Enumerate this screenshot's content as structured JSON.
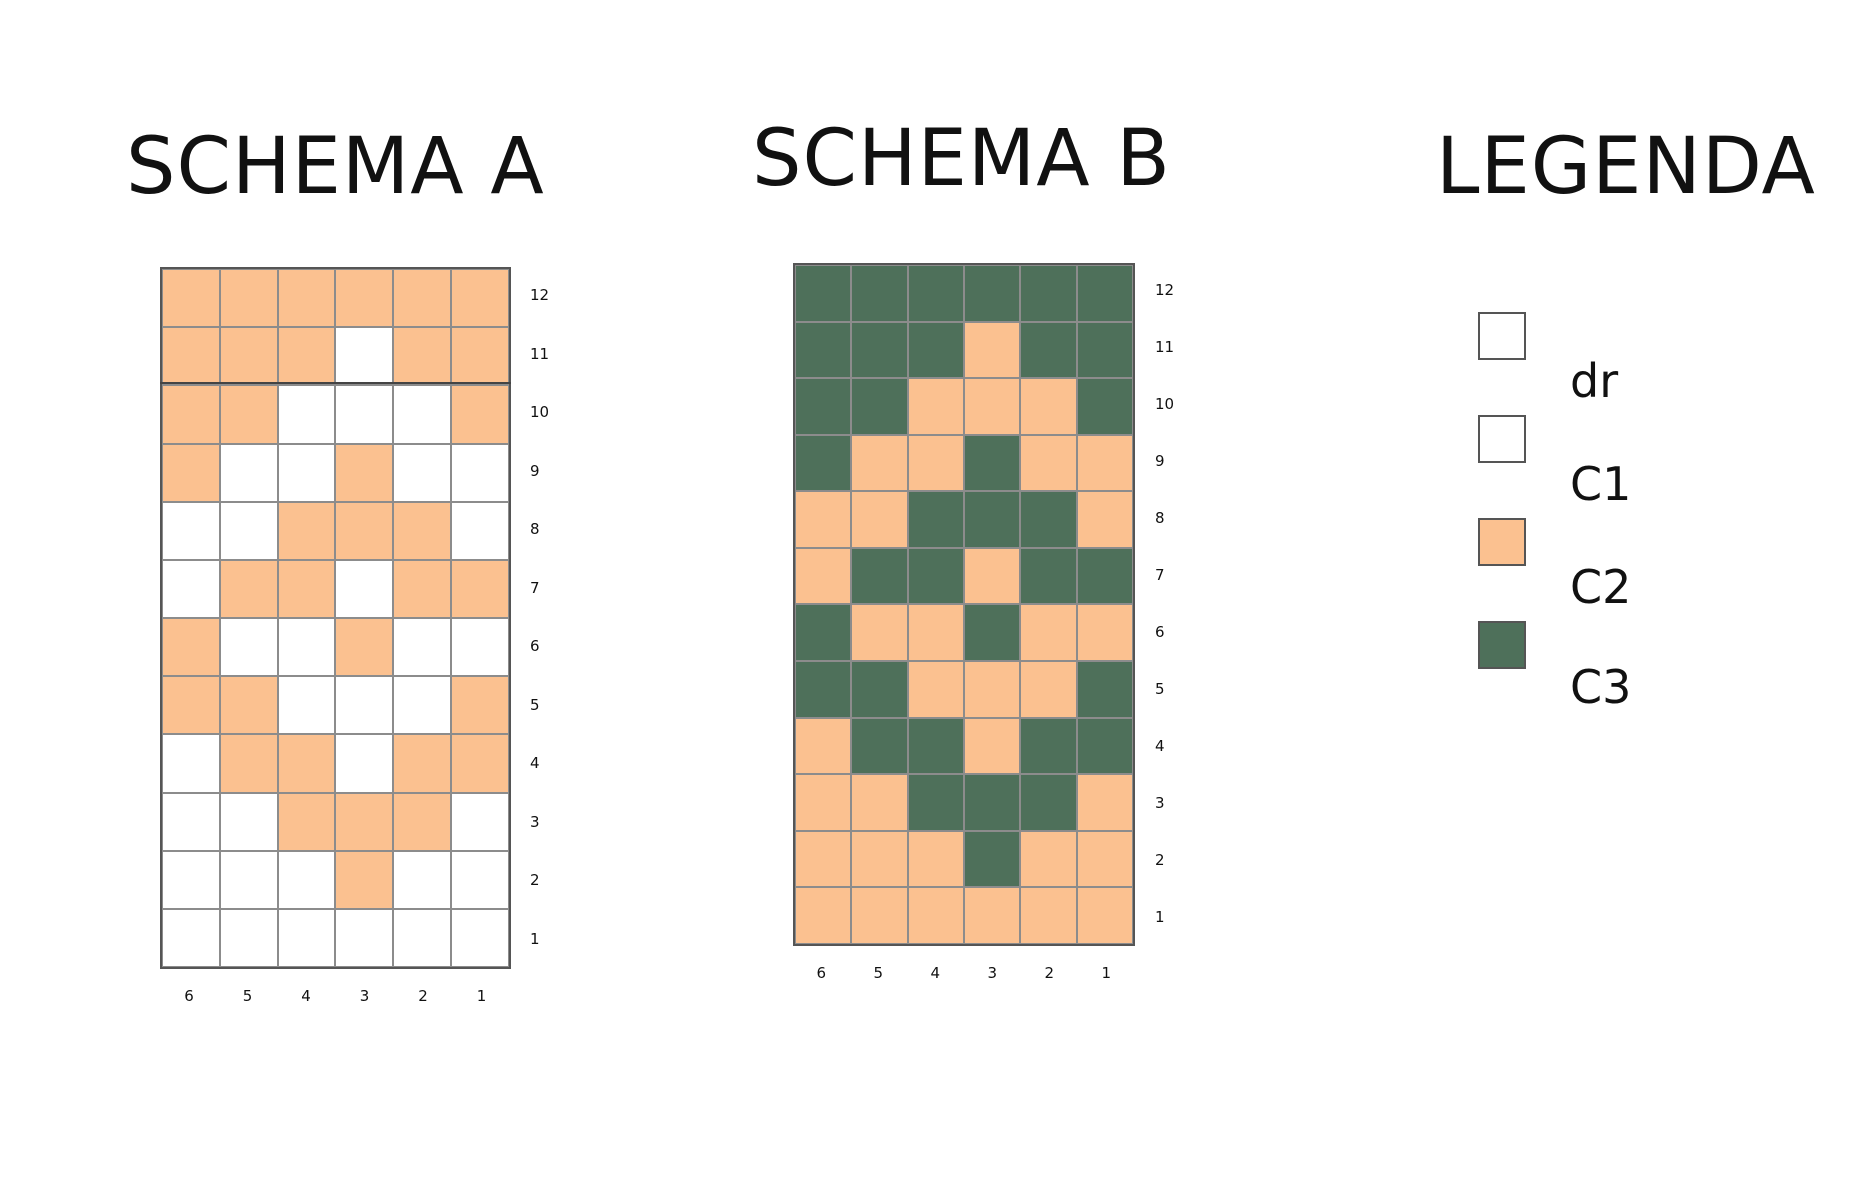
{
  "colors": {
    "dr": "#ffffff",
    "C1": "#ffffff",
    "C2": "#fbc190",
    "C3": "#4e705a"
  },
  "schemas": [
    {
      "id": "a",
      "title": "SCHEMA A",
      "row_labels": [
        "12",
        "11",
        "10",
        "9",
        "8",
        "7",
        "6",
        "5",
        "4",
        "3",
        "2",
        "1"
      ],
      "col_labels": [
        "6",
        "5",
        "4",
        "3",
        "2",
        "1"
      ],
      "rows": [
        [
          "C2",
          "C2",
          "C2",
          "C2",
          "C2",
          "C2"
        ],
        [
          "C2",
          "C2",
          "C2",
          "C1",
          "C2",
          "C2"
        ],
        [
          "C2",
          "C2",
          "C1",
          "C1",
          "C1",
          "C2"
        ],
        [
          "C2",
          "C1",
          "C1",
          "C2",
          "C1",
          "C1"
        ],
        [
          "C1",
          "C1",
          "C2",
          "C2",
          "C2",
          "C1"
        ],
        [
          "C1",
          "C2",
          "C2",
          "C1",
          "C2",
          "C2"
        ],
        [
          "C2",
          "C1",
          "C1",
          "C2",
          "C1",
          "C1"
        ],
        [
          "C2",
          "C2",
          "C1",
          "C1",
          "C1",
          "C2"
        ],
        [
          "C1",
          "C2",
          "C2",
          "C1",
          "C2",
          "C2"
        ],
        [
          "C1",
          "C1",
          "C2",
          "C2",
          "C2",
          "C1"
        ],
        [
          "C1",
          "C1",
          "C1",
          "C2",
          "C1",
          "C1"
        ],
        [
          "C1",
          "C1",
          "C1",
          "C1",
          "C1",
          "C1"
        ]
      ]
    },
    {
      "id": "b",
      "title": "SCHEMA B",
      "row_labels": [
        "12",
        "11",
        "10",
        "9",
        "8",
        "7",
        "6",
        "5",
        "4",
        "3",
        "2",
        "1"
      ],
      "col_labels": [
        "6",
        "5",
        "4",
        "3",
        "2",
        "1"
      ],
      "rows": [
        [
          "C3",
          "C3",
          "C3",
          "C3",
          "C3",
          "C3"
        ],
        [
          "C3",
          "C3",
          "C3",
          "C2",
          "C3",
          "C3"
        ],
        [
          "C3",
          "C3",
          "C2",
          "C2",
          "C2",
          "C3"
        ],
        [
          "C3",
          "C2",
          "C2",
          "C3",
          "C2",
          "C2"
        ],
        [
          "C2",
          "C2",
          "C3",
          "C3",
          "C3",
          "C2"
        ],
        [
          "C2",
          "C3",
          "C3",
          "C2",
          "C3",
          "C3"
        ],
        [
          "C3",
          "C2",
          "C2",
          "C3",
          "C2",
          "C2"
        ],
        [
          "C3",
          "C3",
          "C2",
          "C2",
          "C2",
          "C3"
        ],
        [
          "C2",
          "C3",
          "C3",
          "C2",
          "C3",
          "C3"
        ],
        [
          "C2",
          "C2",
          "C3",
          "C3",
          "C3",
          "C2"
        ],
        [
          "C2",
          "C2",
          "C2",
          "C3",
          "C2",
          "C2"
        ],
        [
          "C2",
          "C2",
          "C2",
          "C2",
          "C2",
          "C2"
        ]
      ]
    }
  ],
  "legend": {
    "title": "LEGENDA",
    "items": [
      {
        "key": "dr",
        "label": "dr"
      },
      {
        "key": "C1",
        "label": "C1"
      },
      {
        "key": "C2",
        "label": "C2"
      },
      {
        "key": "C3",
        "label": "C3"
      }
    ]
  }
}
